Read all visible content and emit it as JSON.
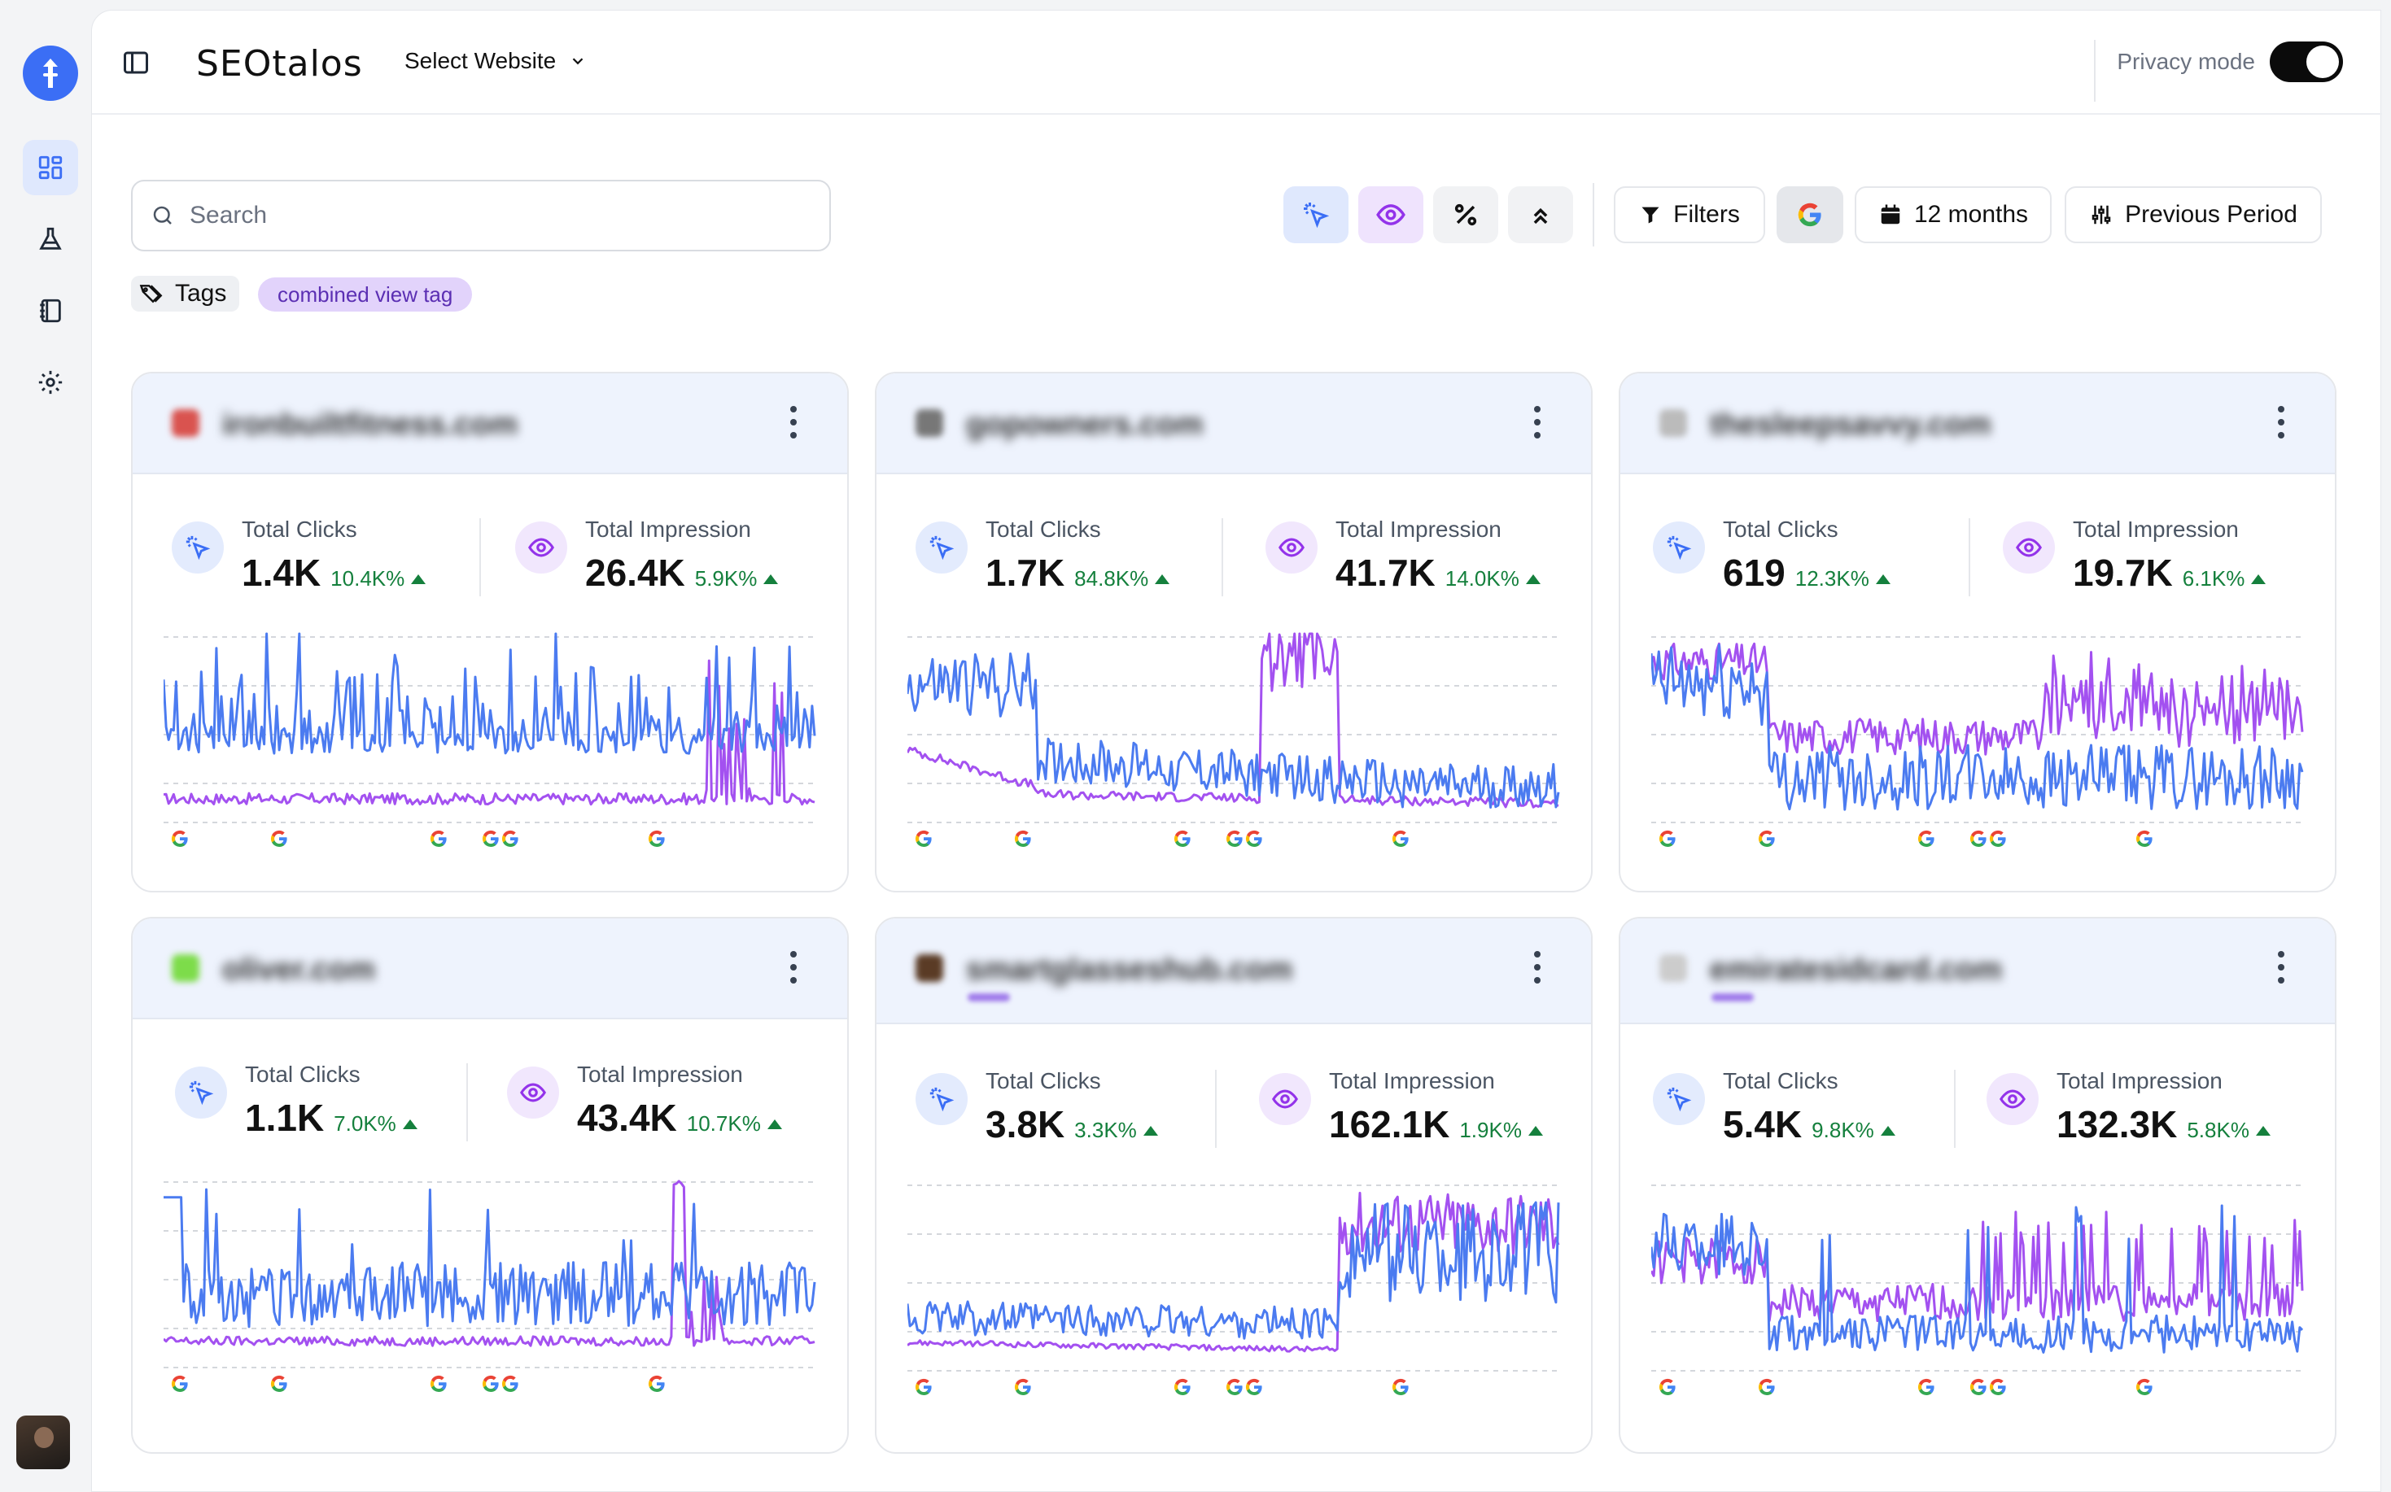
{
  "app": {
    "brand": "SEOtalos",
    "site_select": "Select Website",
    "privacy_label": "Privacy mode"
  },
  "toolbar": {
    "search_placeholder": "Search",
    "filters_label": "Filters",
    "range_label": "12 months",
    "compare_label": "Previous Period"
  },
  "tags": {
    "label": "Tags",
    "chips": [
      "combined view tag"
    ]
  },
  "colors": {
    "clicks": "#4b7bf0",
    "impressions": "#a351f0",
    "up": "#15803d"
  },
  "cards": [
    {
      "site": "ironbuiltfitness.com",
      "clicks_label": "Total Clicks",
      "clicks": "1.4K",
      "clicks_delta": "10.4K%",
      "impr_label": "Total Impression",
      "impressions": "26.4K",
      "impr_delta": "5.9K%"
    },
    {
      "site": "gopowners.com",
      "clicks_label": "Total Clicks",
      "clicks": "1.7K",
      "clicks_delta": "84.8K%",
      "impr_label": "Total Impression",
      "impressions": "41.7K",
      "impr_delta": "14.0K%"
    },
    {
      "site": "thesleepsavvy.com",
      "clicks_label": "Total Clicks",
      "clicks": "619",
      "clicks_delta": "12.3K%",
      "impr_label": "Total Impression",
      "impressions": "19.7K",
      "impr_delta": "6.1K%"
    },
    {
      "site": "oliver.com",
      "clicks_label": "Total Clicks",
      "clicks": "1.1K",
      "clicks_delta": "7.0K%",
      "impr_label": "Total Impression",
      "impressions": "43.4K",
      "impr_delta": "10.7K%"
    },
    {
      "site": "smartglasseshub.com",
      "clicks_label": "Total Clicks",
      "clicks": "3.8K",
      "clicks_delta": "3.3K%",
      "impr_label": "Total Impression",
      "impressions": "162.1K",
      "impr_delta": "1.9K%"
    },
    {
      "site": "emiratesidcard.com",
      "clicks_label": "Total Clicks",
      "clicks": "5.4K",
      "clicks_delta": "9.8K%",
      "impr_label": "Total Impression",
      "impressions": "132.3K",
      "impr_delta": "5.8K%"
    }
  ]
}
